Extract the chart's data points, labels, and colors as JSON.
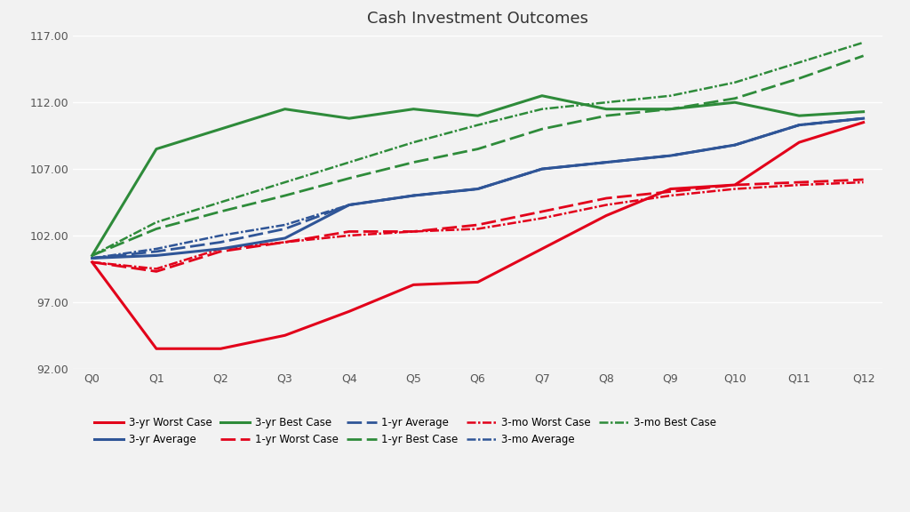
{
  "title": "Cash Investment Outcomes",
  "x_labels": [
    "Q0",
    "Q1",
    "Q2",
    "Q3",
    "Q4",
    "Q5",
    "Q6",
    "Q7",
    "Q8",
    "Q9",
    "Q10",
    "Q11",
    "Q12"
  ],
  "ylim": [
    92.0,
    117.0
  ],
  "yticks": [
    92.0,
    97.0,
    102.0,
    107.0,
    112.0,
    117.0
  ],
  "series": {
    "3yr_worst": {
      "values": [
        100.0,
        93.5,
        93.5,
        94.5,
        96.3,
        98.3,
        98.5,
        101.0,
        103.5,
        105.5,
        105.8,
        109.0,
        110.5
      ],
      "color": "#e2001a",
      "linestyle": "solid",
      "linewidth": 2.2,
      "label": "3-yr Worst Case"
    },
    "3yr_avg": {
      "values": [
        100.3,
        100.5,
        101.0,
        101.8,
        104.3,
        105.0,
        105.5,
        107.0,
        107.5,
        108.0,
        108.8,
        110.3,
        110.8
      ],
      "color": "#2f5597",
      "linestyle": "solid",
      "linewidth": 2.2,
      "label": "3-yr Average"
    },
    "3yr_best": {
      "values": [
        100.5,
        108.5,
        110.0,
        111.5,
        110.8,
        111.5,
        111.0,
        112.5,
        111.5,
        111.5,
        112.0,
        111.0,
        111.3
      ],
      "color": "#2e8b3a",
      "linestyle": "solid",
      "linewidth": 2.2,
      "label": "3-yr Best Case"
    },
    "1yr_worst": {
      "values": [
        100.0,
        99.3,
        100.8,
        101.5,
        102.3,
        102.3,
        102.8,
        103.8,
        104.8,
        105.3,
        105.8,
        106.0,
        106.2
      ],
      "color": "#e2001a",
      "linestyle": "dashed",
      "linewidth": 2.0,
      "label": "1-yr Worst Case"
    },
    "1yr_avg": {
      "values": [
        100.3,
        100.8,
        101.5,
        102.5,
        104.3,
        105.0,
        105.5,
        107.0,
        107.5,
        108.0,
        108.8,
        110.3,
        110.8
      ],
      "color": "#2f5597",
      "linestyle": "dashed",
      "linewidth": 2.0,
      "label": "1-yr Average"
    },
    "1yr_best": {
      "values": [
        100.5,
        102.5,
        103.8,
        105.0,
        106.3,
        107.5,
        108.5,
        110.0,
        111.0,
        111.5,
        112.3,
        113.8,
        115.5
      ],
      "color": "#2e8b3a",
      "linestyle": "dashed",
      "linewidth": 2.0,
      "label": "1-yr Best Case"
    },
    "3mo_worst": {
      "values": [
        100.0,
        99.5,
        101.0,
        101.5,
        102.0,
        102.3,
        102.5,
        103.3,
        104.3,
        105.0,
        105.5,
        105.8,
        106.0
      ],
      "color": "#e2001a",
      "linestyle": "dashdotdot",
      "linewidth": 1.8,
      "label": "3-mo Worst Case"
    },
    "3mo_avg": {
      "values": [
        100.3,
        101.0,
        102.0,
        102.8,
        104.3,
        105.0,
        105.5,
        107.0,
        107.5,
        108.0,
        108.8,
        110.3,
        110.8
      ],
      "color": "#2f5597",
      "linestyle": "dashdotdot",
      "linewidth": 1.8,
      "label": "3-mo Average"
    },
    "3mo_best": {
      "values": [
        100.5,
        103.0,
        104.5,
        106.0,
        107.5,
        109.0,
        110.3,
        111.5,
        112.0,
        112.5,
        113.5,
        115.0,
        116.5
      ],
      "color": "#2e8b3a",
      "linestyle": "dashdotdot",
      "linewidth": 1.8,
      "label": "3-mo Best Case"
    }
  },
  "background_color": "#f2f2f2",
  "plot_bg_color": "#f2f2f2",
  "grid_color": "#ffffff",
  "title_fontsize": 13,
  "tick_fontsize": 9,
  "legend_fontsize": 8.5
}
